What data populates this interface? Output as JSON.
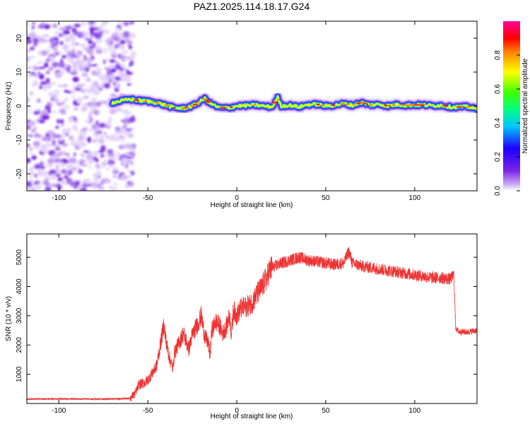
{
  "title": "PAZ1.2025.114.18.17.G24",
  "colors": {
    "line": "#ee3333",
    "axes": "#000000",
    "background": "#ffffff",
    "spectrum_low": "#7b1fe0",
    "spectrum_high": "#ff00cc"
  },
  "chart_data": [
    {
      "type": "heatmap",
      "title": "",
      "xlabel": "Height of straight line (km)",
      "ylabel": "Frequency (Hz)",
      "xlim": [
        -118,
        135
      ],
      "ylim": [
        -25,
        25
      ],
      "xticks": [
        -100,
        -50,
        0,
        50,
        100
      ],
      "yticks": [
        -20,
        -10,
        0,
        10,
        20
      ],
      "grid": false,
      "colorbar": {
        "label": "Normalized spectral amplitude",
        "range": [
          0,
          1
        ],
        "ticks": [
          0.0,
          0.2,
          0.4,
          0.6,
          0.8
        ],
        "colormap": "rainbow (violet-blue-cyan-green-yellow-red-magenta)"
      },
      "noise_region_x": [
        -118,
        -58
      ],
      "ridge": {
        "x": [
          -70,
          -60,
          -55,
          -50,
          -45,
          -40,
          -35,
          -30,
          -25,
          -20,
          -18,
          -15,
          -10,
          -5,
          0,
          5,
          10,
          15,
          20,
          23,
          25,
          30,
          35,
          40,
          45,
          50,
          55,
          60,
          65,
          70,
          75,
          80,
          85,
          90,
          95,
          100,
          105,
          110,
          115,
          120,
          125,
          130,
          135
        ],
        "frequency_hz": [
          1.0,
          2.0,
          1.6,
          1.4,
          1.0,
          0.2,
          -0.5,
          -0.7,
          0.0,
          1.5,
          2.2,
          0.8,
          -0.5,
          -0.6,
          0.0,
          0.1,
          0.3,
          0.0,
          -0.3,
          2.5,
          0.0,
          0.2,
          -0.3,
          0.4,
          0.5,
          0.0,
          0.2,
          0.7,
          0.2,
          1.0,
          0.3,
          0.5,
          0.0,
          0.4,
          0.2,
          0.3,
          0.3,
          0.1,
          0.2,
          -0.3,
          -0.3,
          -0.2,
          -1.0
        ]
      }
    },
    {
      "type": "line",
      "title": "",
      "xlabel": "Height of straight line (km)",
      "ylabel": "SNR (10 * v/v)",
      "xlim": [
        -118,
        135
      ],
      "ylim": [
        0,
        5800
      ],
      "xticks": [
        -100,
        -50,
        0,
        50,
        100
      ],
      "yticks": [
        1000,
        2000,
        3000,
        4000,
        5000
      ],
      "grid": false,
      "series": [
        {
          "x": [
            -118,
            -100,
            -80,
            -65,
            -60,
            -57,
            -55,
            -52,
            -50,
            -48,
            -45,
            -43,
            -41,
            -40,
            -38,
            -36,
            -35,
            -33,
            -30,
            -28,
            -27,
            -25,
            -23,
            -22,
            -20,
            -18,
            -16,
            -15,
            -14,
            -12,
            -10,
            -8,
            -6,
            -5,
            -4,
            -3,
            -2,
            0,
            2,
            5,
            8,
            10,
            12,
            14,
            15,
            17,
            18,
            20,
            25,
            30,
            35,
            40,
            45,
            50,
            55,
            60,
            63,
            65,
            70,
            75,
            80,
            85,
            90,
            95,
            100,
            105,
            110,
            115,
            120,
            122,
            123,
            124,
            125,
            130,
            135
          ],
          "values": [
            150,
            160,
            150,
            160,
            180,
            350,
            650,
            700,
            800,
            1000,
            1300,
            2000,
            2700,
            2200,
            1600,
            1200,
            1750,
            2000,
            2400,
            2050,
            1850,
            2350,
            2600,
            2700,
            3000,
            2300,
            2050,
            1650,
            2500,
            2800,
            2700,
            2400,
            2600,
            2800,
            3000,
            2300,
            3200,
            3000,
            3250,
            3300,
            3400,
            3600,
            3800,
            3950,
            4100,
            4300,
            4500,
            4650,
            4800,
            4900,
            5000,
            4900,
            4850,
            4800,
            4750,
            4800,
            5200,
            4800,
            4700,
            4650,
            4600,
            4550,
            4500,
            4450,
            4400,
            4350,
            4300,
            4300,
            4250,
            4400,
            2600,
            2500,
            2450,
            2450,
            2500
          ]
        }
      ]
    }
  ]
}
